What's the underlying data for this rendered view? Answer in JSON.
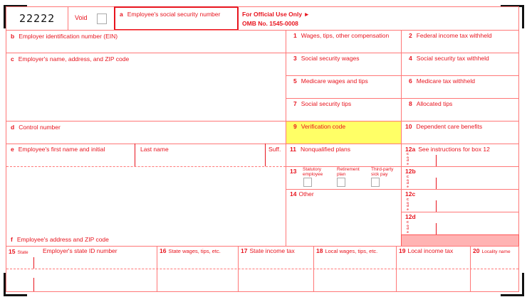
{
  "form_code": "22222",
  "void_label": "Void",
  "box_a": {
    "letter": "a",
    "label": "Employee's social security number"
  },
  "official": {
    "line1": "For Official Use Only",
    "arrow": "►",
    "line2": "OMB No. 1545-0008"
  },
  "box_b": {
    "letter": "b",
    "label": "Employer identification number (EIN)"
  },
  "box_c": {
    "letter": "c",
    "label": "Employer's name, address, and ZIP code"
  },
  "box_d": {
    "letter": "d",
    "label": "Control number"
  },
  "box_e": {
    "letter": "e",
    "label": "Employee's first name and initial",
    "last": "Last name",
    "suff": "Suff."
  },
  "box_f": {
    "letter": "f",
    "label": "Employee's address and ZIP code"
  },
  "boxes": {
    "b1": {
      "num": "1",
      "label": "Wages, tips, other compensation"
    },
    "b2": {
      "num": "2",
      "label": "Federal income tax withheld"
    },
    "b3": {
      "num": "3",
      "label": "Social security wages"
    },
    "b4": {
      "num": "4",
      "label": "Social security tax withheld"
    },
    "b5": {
      "num": "5",
      "label": "Medicare wages and tips"
    },
    "b6": {
      "num": "6",
      "label": "Medicare tax withheld"
    },
    "b7": {
      "num": "7",
      "label": "Social security tips"
    },
    "b8": {
      "num": "8",
      "label": "Allocated tips"
    },
    "b9": {
      "num": "9",
      "label": "Verification code"
    },
    "b10": {
      "num": "10",
      "label": "Dependent care benefits"
    },
    "b11": {
      "num": "11",
      "label": "Nonqualified plans"
    },
    "b12a": {
      "num": "12a",
      "label": "See instructions for box 12"
    },
    "b12b": {
      "num": "12b"
    },
    "b12c": {
      "num": "12c"
    },
    "b12d": {
      "num": "12d"
    },
    "b13": {
      "num": "13",
      "statutory": "Statutory employee",
      "retirement": "Retirement plan",
      "thirdparty": "Third-party sick pay"
    },
    "b14": {
      "num": "14",
      "label": "Other"
    },
    "b15": {
      "num": "15",
      "state": "State",
      "label": "Employer's state ID number"
    },
    "b16": {
      "num": "16",
      "label": "State wages, tips, etc."
    },
    "b17": {
      "num": "17",
      "label": "State income tax"
    },
    "b18": {
      "num": "18",
      "label": "Local wages, tips, etc."
    },
    "b19": {
      "num": "19",
      "label": "Local income tax"
    },
    "b20": {
      "num": "20",
      "label": "Locality name"
    }
  },
  "code_letters": "C o d e",
  "colors": {
    "line": "#ff7777",
    "text": "#e8141e",
    "verification_bg": "#ffff66",
    "shaded": "#ffb3b3"
  }
}
